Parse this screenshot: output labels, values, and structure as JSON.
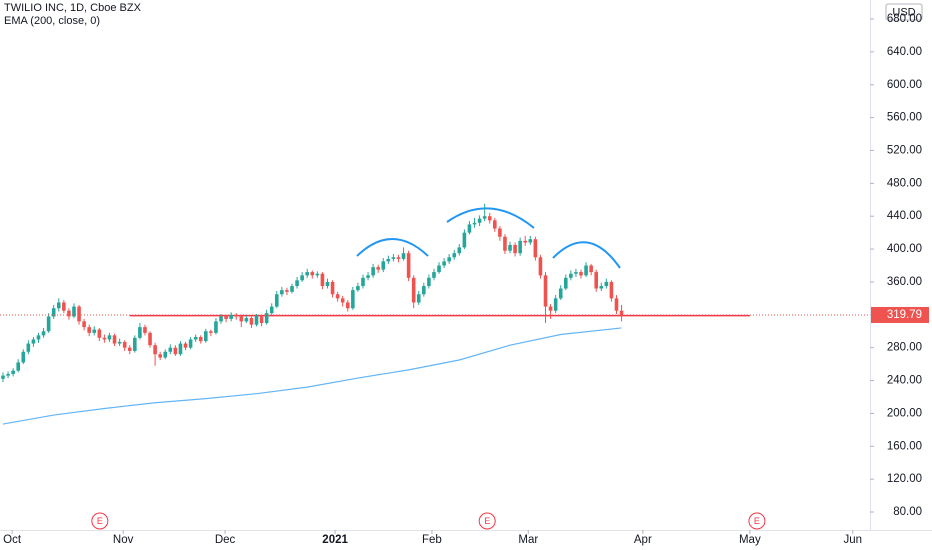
{
  "chart_data": {
    "type": "candlestick",
    "title": "TWILIO INC, 1D, Cboe BZX",
    "subtitle": "EMA (200, close, 0)",
    "currency": "USD",
    "up_color": "#26a69a",
    "down_color": "#ef5350",
    "ylim": [
      80,
      680
    ],
    "yticks": [
      {
        "value": 80,
        "label": "80.00"
      },
      {
        "value": 120,
        "label": "120.00"
      },
      {
        "value": 160,
        "label": "160.00"
      },
      {
        "value": 200,
        "label": "200.00"
      },
      {
        "value": 240,
        "label": "240.00"
      },
      {
        "value": 280,
        "label": "280.00"
      },
      {
        "value": 320,
        "label": "320.00"
      },
      {
        "value": 360,
        "label": "360.00"
      },
      {
        "value": 400,
        "label": "400.00"
      },
      {
        "value": 440,
        "label": "440.00"
      },
      {
        "value": 480,
        "label": "480.00"
      },
      {
        "value": 520,
        "label": "520.00"
      },
      {
        "value": 560,
        "label": "560.00"
      },
      {
        "value": 600,
        "label": "600.00"
      },
      {
        "value": 640,
        "label": "640.00"
      },
      {
        "value": 680,
        "label": "680.00"
      }
    ],
    "xlim": [
      0,
      171
    ],
    "xticks": [
      {
        "value": 1.8,
        "label": "Oct"
      },
      {
        "value": 23.7,
        "label": "Nov"
      },
      {
        "value": 43.8,
        "label": "Dec"
      },
      {
        "value": 65.5,
        "label": "2021"
      },
      {
        "value": 84.6,
        "label": "Feb"
      },
      {
        "value": 103.6,
        "label": "Mar"
      },
      {
        "value": 126.2,
        "label": "Apr"
      },
      {
        "value": 147.3,
        "label": "May"
      },
      {
        "value": 167.6,
        "label": "Jun"
      }
    ],
    "grid": false,
    "ohlc": [
      [
        242,
        250,
        238,
        246
      ],
      [
        246,
        251,
        243,
        248
      ],
      [
        248,
        255,
        245,
        252
      ],
      [
        252,
        266,
        250,
        262
      ],
      [
        262,
        278,
        260,
        275
      ],
      [
        275,
        289,
        272,
        285
      ],
      [
        285,
        293,
        281,
        290
      ],
      [
        290,
        298,
        286,
        295
      ],
      [
        295,
        304,
        292,
        300
      ],
      [
        300,
        322,
        298,
        318
      ],
      [
        318,
        332,
        315,
        328
      ],
      [
        328,
        340,
        324,
        335
      ],
      [
        335,
        338,
        322,
        325
      ],
      [
        325,
        328,
        314,
        318
      ],
      [
        318,
        334,
        316,
        330
      ],
      [
        330,
        332,
        308,
        312
      ],
      [
        312,
        315,
        301,
        305
      ],
      [
        305,
        308,
        294,
        298
      ],
      [
        298,
        306,
        295,
        302
      ],
      [
        302,
        304,
        288,
        292
      ],
      [
        292,
        296,
        286,
        290
      ],
      [
        290,
        298,
        287,
        295
      ],
      [
        295,
        297,
        282,
        285
      ],
      [
        285,
        291,
        282,
        287
      ],
      [
        287,
        289,
        276,
        280
      ],
      [
        280,
        283,
        272,
        276
      ],
      [
        276,
        295,
        274,
        292
      ],
      [
        292,
        310,
        290,
        305
      ],
      [
        305,
        308,
        295,
        298
      ],
      [
        298,
        300,
        280,
        283
      ],
      [
        283,
        286,
        258,
        272
      ],
      [
        272,
        275,
        265,
        268
      ],
      [
        268,
        278,
        266,
        275
      ],
      [
        275,
        284,
        272,
        280
      ],
      [
        280,
        283,
        270,
        272
      ],
      [
        272,
        288,
        270,
        285
      ],
      [
        285,
        287,
        277,
        280
      ],
      [
        280,
        293,
        278,
        290
      ],
      [
        290,
        296,
        287,
        293
      ],
      [
        293,
        295,
        285,
        288
      ],
      [
        288,
        303,
        286,
        300
      ],
      [
        300,
        302,
        294,
        298
      ],
      [
        298,
        316,
        296,
        312
      ],
      [
        312,
        321,
        309,
        318
      ],
      [
        318,
        320,
        311,
        315
      ],
      [
        315,
        323,
        312,
        320
      ],
      [
        320,
        322,
        314,
        318
      ],
      [
        318,
        320,
        305,
        312
      ],
      [
        312,
        319,
        310,
        316
      ],
      [
        316,
        318,
        304,
        308
      ],
      [
        308,
        321,
        306,
        318
      ],
      [
        318,
        320,
        306,
        310
      ],
      [
        310,
        326,
        308,
        322
      ],
      [
        322,
        334,
        320,
        330
      ],
      [
        330,
        349,
        328,
        345
      ],
      [
        345,
        354,
        342,
        350
      ],
      [
        350,
        353,
        344,
        348
      ],
      [
        348,
        358,
        346,
        355
      ],
      [
        355,
        366,
        352,
        362
      ],
      [
        362,
        372,
        360,
        368
      ],
      [
        368,
        376,
        365,
        372
      ],
      [
        372,
        374,
        364,
        368
      ],
      [
        368,
        373,
        365,
        370
      ],
      [
        370,
        372,
        351,
        355
      ],
      [
        355,
        364,
        352,
        360
      ],
      [
        360,
        362,
        341,
        345
      ],
      [
        345,
        348,
        336,
        340
      ],
      [
        340,
        343,
        330,
        335
      ],
      [
        335,
        338,
        324,
        328
      ],
      [
        328,
        354,
        326,
        350
      ],
      [
        350,
        359,
        348,
        355
      ],
      [
        355,
        369,
        352,
        365
      ],
      [
        365,
        372,
        362,
        368
      ],
      [
        368,
        382,
        365,
        378
      ],
      [
        378,
        381,
        371,
        375
      ],
      [
        375,
        389,
        372,
        385
      ],
      [
        385,
        392,
        382,
        388
      ],
      [
        388,
        394,
        385,
        390
      ],
      [
        390,
        393,
        384,
        388
      ],
      [
        388,
        402,
        386,
        395
      ],
      [
        395,
        398,
        361,
        365
      ],
      [
        365,
        368,
        328,
        335
      ],
      [
        335,
        349,
        332,
        345
      ],
      [
        345,
        359,
        342,
        355
      ],
      [
        355,
        369,
        352,
        365
      ],
      [
        365,
        376,
        362,
        372
      ],
      [
        372,
        384,
        370,
        380
      ],
      [
        380,
        389,
        377,
        385
      ],
      [
        385,
        394,
        382,
        390
      ],
      [
        390,
        399,
        387,
        395
      ],
      [
        395,
        406,
        392,
        402
      ],
      [
        402,
        424,
        400,
        420
      ],
      [
        420,
        434,
        418,
        430
      ],
      [
        430,
        438,
        426,
        432
      ],
      [
        432,
        441,
        428,
        437
      ],
      [
        437,
        455,
        434,
        440
      ],
      [
        440,
        444,
        431,
        435
      ],
      [
        435,
        438,
        421,
        425
      ],
      [
        425,
        428,
        410,
        415
      ],
      [
        415,
        418,
        394,
        398
      ],
      [
        398,
        409,
        395,
        405
      ],
      [
        405,
        408,
        391,
        395
      ],
      [
        395,
        414,
        392,
        410
      ],
      [
        410,
        416,
        404,
        408
      ],
      [
        408,
        416,
        405,
        412
      ],
      [
        412,
        415,
        386,
        390
      ],
      [
        390,
        393,
        364,
        368
      ],
      [
        368,
        372,
        310,
        330
      ],
      [
        330,
        333,
        315,
        325
      ],
      [
        325,
        344,
        322,
        340
      ],
      [
        340,
        356,
        338,
        352
      ],
      [
        352,
        369,
        350,
        365
      ],
      [
        365,
        374,
        362,
        370
      ],
      [
        370,
        376,
        366,
        372
      ],
      [
        372,
        375,
        364,
        368
      ],
      [
        368,
        384,
        366,
        380
      ],
      [
        380,
        382,
        368,
        372
      ],
      [
        372,
        375,
        348,
        352
      ],
      [
        352,
        359,
        349,
        355
      ],
      [
        355,
        364,
        352,
        360
      ],
      [
        360,
        362,
        336,
        340
      ],
      [
        340,
        344,
        321,
        325
      ],
      [
        325,
        332,
        312,
        319.79
      ]
    ],
    "ema": {
      "color": "#64b5f6",
      "x": [
        0,
        10,
        20,
        30,
        40,
        50,
        60,
        70,
        80,
        90,
        100,
        110,
        122
      ],
      "values": [
        187,
        198,
        206,
        213,
        218,
        224,
        232,
        243,
        253,
        265,
        283,
        296,
        304
      ]
    },
    "support": {
      "color": "#f23645",
      "value": 319,
      "x": [
        25,
        147.3
      ]
    },
    "earnings": {
      "label": "E",
      "x": [
        19.1,
        95.5,
        148.7
      ]
    }
  }
}
